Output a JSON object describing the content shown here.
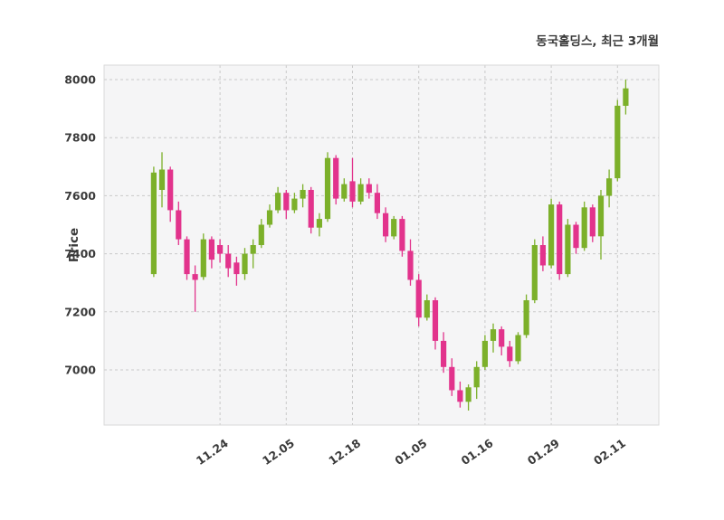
{
  "title": "동국홀딩스, 최근 3개월",
  "chart_data": {
    "type": "candlestick",
    "title": "동국홀딩스, 최근 3개월",
    "xlabel": "",
    "ylabel": "Price",
    "ylim": [
      6810,
      8050
    ],
    "yticks": [
      7000,
      7200,
      7400,
      7600,
      7800,
      8000
    ],
    "xticks": [
      {
        "label": "11.24",
        "index": 8
      },
      {
        "label": "12.05",
        "index": 16
      },
      {
        "label": "12.18",
        "index": 24
      },
      {
        "label": "01.05",
        "index": 32
      },
      {
        "label": "01.16",
        "index": 40
      },
      {
        "label": "01.29",
        "index": 48
      },
      {
        "label": "02.11",
        "index": 56
      }
    ],
    "grid": true,
    "legend": null,
    "colors": {
      "up": "#7cb02a",
      "down": "#e2338c",
      "plot_bg": "#f5f5f6",
      "grid": "#c9c9c9",
      "border": "#d9d9d9",
      "text": "#3a3a3a"
    },
    "candle_format": [
      "open",
      "high",
      "low",
      "close"
    ],
    "candles": [
      [
        7330,
        7700,
        7320,
        7680
      ],
      [
        7620,
        7750,
        7560,
        7690
      ],
      [
        7690,
        7700,
        7510,
        7550
      ],
      [
        7550,
        7580,
        7430,
        7450
      ],
      [
        7450,
        7460,
        7310,
        7330
      ],
      [
        7330,
        7360,
        7200,
        7310
      ],
      [
        7320,
        7470,
        7310,
        7450
      ],
      [
        7450,
        7460,
        7350,
        7380
      ],
      [
        7430,
        7450,
        7370,
        7400
      ],
      [
        7400,
        7430,
        7320,
        7350
      ],
      [
        7370,
        7390,
        7290,
        7330
      ],
      [
        7330,
        7420,
        7310,
        7400
      ],
      [
        7400,
        7450,
        7350,
        7430
      ],
      [
        7430,
        7520,
        7420,
        7500
      ],
      [
        7500,
        7570,
        7490,
        7550
      ],
      [
        7550,
        7630,
        7540,
        7610
      ],
      [
        7610,
        7620,
        7520,
        7550
      ],
      [
        7550,
        7610,
        7540,
        7590
      ],
      [
        7590,
        7640,
        7560,
        7620
      ],
      [
        7620,
        7630,
        7470,
        7490
      ],
      [
        7490,
        7540,
        7460,
        7520
      ],
      [
        7520,
        7750,
        7510,
        7730
      ],
      [
        7730,
        7740,
        7570,
        7590
      ],
      [
        7590,
        7660,
        7580,
        7640
      ],
      [
        7650,
        7730,
        7560,
        7580
      ],
      [
        7580,
        7660,
        7570,
        7640
      ],
      [
        7640,
        7660,
        7590,
        7610
      ],
      [
        7610,
        7640,
        7520,
        7540
      ],
      [
        7540,
        7560,
        7440,
        7460
      ],
      [
        7460,
        7530,
        7450,
        7520
      ],
      [
        7520,
        7530,
        7390,
        7410
      ],
      [
        7410,
        7450,
        7290,
        7310
      ],
      [
        7310,
        7330,
        7150,
        7180
      ],
      [
        7180,
        7260,
        7170,
        7240
      ],
      [
        7240,
        7250,
        7070,
        7100
      ],
      [
        7100,
        7130,
        6990,
        7010
      ],
      [
        7010,
        7040,
        6910,
        6930
      ],
      [
        6930,
        6960,
        6870,
        6890
      ],
      [
        6890,
        6950,
        6860,
        6940
      ],
      [
        6940,
        7030,
        6900,
        7010
      ],
      [
        7010,
        7120,
        7000,
        7100
      ],
      [
        7100,
        7160,
        7060,
        7140
      ],
      [
        7140,
        7150,
        7050,
        7080
      ],
      [
        7080,
        7100,
        7010,
        7030
      ],
      [
        7030,
        7130,
        7020,
        7120
      ],
      [
        7120,
        7260,
        7110,
        7240
      ],
      [
        7240,
        7450,
        7230,
        7430
      ],
      [
        7430,
        7460,
        7340,
        7360
      ],
      [
        7360,
        7590,
        7350,
        7570
      ],
      [
        7570,
        7580,
        7310,
        7330
      ],
      [
        7330,
        7520,
        7320,
        7500
      ],
      [
        7500,
        7510,
        7400,
        7420
      ],
      [
        7420,
        7580,
        7410,
        7560
      ],
      [
        7560,
        7570,
        7440,
        7460
      ],
      [
        7460,
        7620,
        7380,
        7600
      ],
      [
        7600,
        7690,
        7560,
        7660
      ],
      [
        7660,
        7930,
        7650,
        7910
      ],
      [
        7910,
        8000,
        7880,
        7970
      ]
    ]
  }
}
